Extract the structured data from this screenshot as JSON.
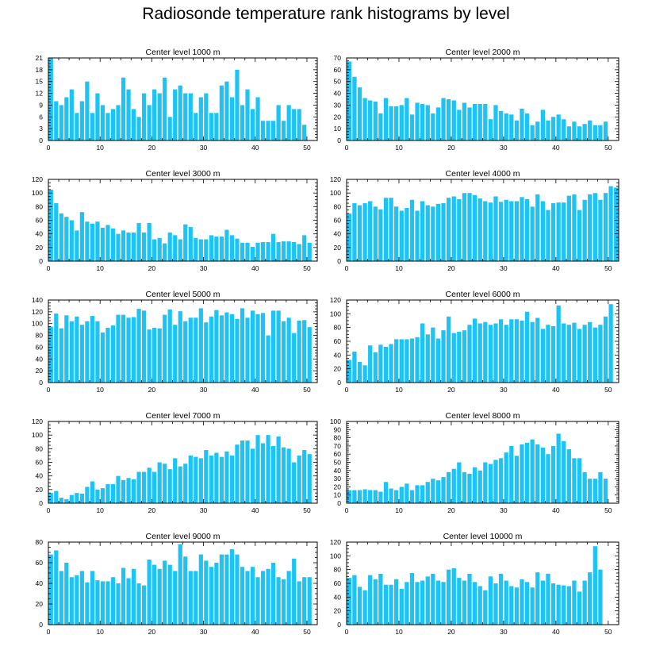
{
  "figure": {
    "title": "Radiosonde temperature rank histograms by level",
    "bar_color": "#1EC3F5"
  },
  "chart_data": [
    {
      "type": "bar",
      "title": "Center level 1000 m",
      "xlim": [
        0,
        52
      ],
      "ylim": [
        0,
        21
      ],
      "xticks": [
        0,
        10,
        20,
        30,
        40,
        50
      ],
      "yticks": [
        0,
        3,
        6,
        9,
        12,
        15,
        18,
        21
      ],
      "values": [
        21,
        10,
        9,
        11,
        13,
        7,
        10,
        15,
        7,
        12,
        9,
        7,
        8,
        9,
        16,
        13,
        8,
        6,
        12,
        9,
        13,
        12,
        16,
        6,
        13,
        14,
        12,
        12,
        7,
        11,
        12,
        7,
        7,
        14,
        15,
        11,
        18,
        9,
        13,
        8,
        11,
        5,
        5,
        5,
        9,
        5,
        9,
        8,
        8,
        4
      ]
    },
    {
      "type": "bar",
      "title": "Center level 2000 m",
      "xlim": [
        0,
        52
      ],
      "ylim": [
        0,
        70
      ],
      "xticks": [
        0,
        10,
        20,
        30,
        40,
        50
      ],
      "yticks": [
        0,
        10,
        20,
        30,
        40,
        50,
        60,
        70
      ],
      "values": [
        67,
        54,
        45,
        36,
        34,
        33,
        23,
        36,
        29,
        29,
        30,
        36,
        22,
        32,
        31,
        30,
        23,
        28,
        36,
        35,
        34,
        26,
        32,
        28,
        31,
        31,
        31,
        18,
        30,
        25,
        23,
        22,
        17,
        27,
        23,
        13,
        16,
        26,
        17,
        20,
        22,
        18,
        12,
        16,
        12,
        14,
        17,
        13,
        13,
        16
      ]
    },
    {
      "type": "bar",
      "title": "Center level 3000 m",
      "xlim": [
        0,
        52
      ],
      "ylim": [
        0,
        120
      ],
      "xticks": [
        0,
        10,
        20,
        30,
        40,
        50
      ],
      "yticks": [
        0,
        20,
        40,
        60,
        80,
        100,
        120
      ],
      "values": [
        105,
        85,
        70,
        65,
        60,
        45,
        72,
        58,
        55,
        58,
        49,
        53,
        48,
        40,
        45,
        42,
        42,
        56,
        42,
        56,
        32,
        34,
        26,
        42,
        38,
        32,
        54,
        50,
        34,
        32,
        32,
        38,
        36,
        36,
        46,
        38,
        33,
        27,
        27,
        21,
        27,
        28,
        28,
        40,
        28,
        29,
        29,
        28,
        25,
        38,
        27
      ]
    },
    {
      "type": "bar",
      "title": "Center level 4000 m",
      "xlim": [
        0,
        52
      ],
      "ylim": [
        0,
        120
      ],
      "xticks": [
        0,
        10,
        20,
        30,
        40,
        50
      ],
      "yticks": [
        0,
        20,
        40,
        60,
        80,
        100,
        120
      ],
      "values": [
        70,
        85,
        82,
        85,
        88,
        80,
        76,
        93,
        93,
        80,
        74,
        78,
        90,
        74,
        88,
        82,
        80,
        84,
        85,
        93,
        95,
        91,
        100,
        100,
        97,
        92,
        88,
        86,
        95,
        87,
        90,
        88,
        88,
        94,
        91,
        80,
        98,
        88,
        75,
        85,
        86,
        86,
        96,
        98,
        75,
        90,
        98,
        100,
        90,
        100,
        110,
        108
      ]
    },
    {
      "type": "bar",
      "title": "Center level 5000 m",
      "xlim": [
        0,
        52
      ],
      "ylim": [
        0,
        140
      ],
      "xticks": [
        0,
        10,
        20,
        30,
        40,
        50
      ],
      "yticks": [
        0,
        20,
        40,
        60,
        80,
        100,
        120,
        140
      ],
      "values": [
        95,
        117,
        92,
        114,
        104,
        112,
        98,
        104,
        113,
        104,
        85,
        93,
        97,
        115,
        115,
        110,
        111,
        125,
        122,
        90,
        93,
        92,
        115,
        124,
        98,
        121,
        104,
        110,
        110,
        126,
        102,
        112,
        123,
        114,
        119,
        116,
        108,
        126,
        110,
        122,
        116,
        118,
        80,
        122,
        122,
        104,
        110,
        84,
        105,
        106,
        94
      ]
    },
    {
      "type": "bar",
      "title": "Center level 6000 m",
      "xlim": [
        0,
        52
      ],
      "ylim": [
        0,
        120
      ],
      "xticks": [
        0,
        10,
        20,
        30,
        40,
        50
      ],
      "yticks": [
        0,
        20,
        40,
        60,
        80,
        100,
        120
      ],
      "values": [
        33,
        45,
        30,
        25,
        54,
        44,
        55,
        52,
        56,
        63,
        63,
        63,
        64,
        66,
        86,
        70,
        80,
        64,
        76,
        96,
        72,
        74,
        76,
        84,
        93,
        86,
        88,
        84,
        86,
        92,
        84,
        92,
        92,
        90,
        103,
        88,
        94,
        78,
        84,
        82,
        112,
        86,
        84,
        87,
        78,
        84,
        88,
        80,
        84,
        96,
        114
      ]
    },
    {
      "type": "bar",
      "title": "Center level 7000 m",
      "xlim": [
        0,
        52
      ],
      "ylim": [
        0,
        120
      ],
      "xticks": [
        0,
        10,
        20,
        30,
        40,
        50
      ],
      "yticks": [
        0,
        20,
        40,
        60,
        80,
        100,
        120
      ],
      "values": [
        15,
        18,
        8,
        6,
        12,
        15,
        14,
        24,
        32,
        20,
        22,
        28,
        28,
        40,
        34,
        37,
        35,
        46,
        46,
        52,
        46,
        60,
        58,
        50,
        66,
        54,
        58,
        70,
        68,
        66,
        78,
        70,
        74,
        68,
        76,
        70,
        86,
        92,
        92,
        80,
        100,
        88,
        100,
        84,
        98,
        82,
        80,
        60,
        70,
        78,
        72
      ]
    },
    {
      "type": "bar",
      "title": "Center level 8000 m",
      "xlim": [
        0,
        52
      ],
      "ylim": [
        0,
        100
      ],
      "xticks": [
        0,
        10,
        20,
        30,
        40,
        50
      ],
      "yticks": [
        0,
        10,
        20,
        30,
        40,
        50,
        60,
        70,
        80,
        90,
        100
      ],
      "values": [
        16,
        16,
        16,
        17,
        16,
        16,
        14,
        26,
        18,
        16,
        20,
        24,
        16,
        22,
        22,
        26,
        30,
        28,
        32,
        38,
        42,
        50,
        38,
        36,
        44,
        40,
        50,
        48,
        53,
        55,
        62,
        70,
        58,
        72,
        74,
        78,
        72,
        68,
        60,
        70,
        85,
        76,
        66,
        55,
        55,
        38,
        30,
        30,
        38,
        30
      ]
    },
    {
      "type": "bar",
      "title": "Center level 9000 m",
      "xlim": [
        0,
        52
      ],
      "ylim": [
        0,
        80
      ],
      "xticks": [
        0,
        10,
        20,
        30,
        40,
        50
      ],
      "yticks": [
        0,
        20,
        40,
        60,
        80
      ],
      "values": [
        68,
        72,
        52,
        60,
        46,
        48,
        52,
        41,
        52,
        43,
        42,
        42,
        46,
        40,
        55,
        45,
        54,
        40,
        38,
        63,
        58,
        54,
        62,
        58,
        52,
        78,
        66,
        52,
        52,
        68,
        62,
        56,
        60,
        68,
        68,
        73,
        68,
        56,
        52,
        56,
        46,
        52,
        54,
        60,
        46,
        44,
        52,
        64,
        42,
        46,
        46
      ]
    },
    {
      "type": "bar",
      "title": "Center level 10000 m",
      "xlim": [
        0,
        52
      ],
      "ylim": [
        0,
        120
      ],
      "xticks": [
        0,
        10,
        20,
        30,
        40,
        50
      ],
      "yticks": [
        0,
        20,
        40,
        60,
        80,
        100,
        120
      ],
      "values": [
        68,
        72,
        55,
        50,
        72,
        66,
        74,
        58,
        58,
        66,
        52,
        62,
        75,
        62,
        64,
        70,
        74,
        64,
        62,
        80,
        82,
        68,
        64,
        74,
        62,
        56,
        50,
        70,
        60,
        74,
        64,
        56,
        54,
        66,
        62,
        54,
        76,
        64,
        74,
        60,
        58,
        57,
        56,
        64,
        48,
        64,
        76,
        114,
        80
      ]
    }
  ]
}
